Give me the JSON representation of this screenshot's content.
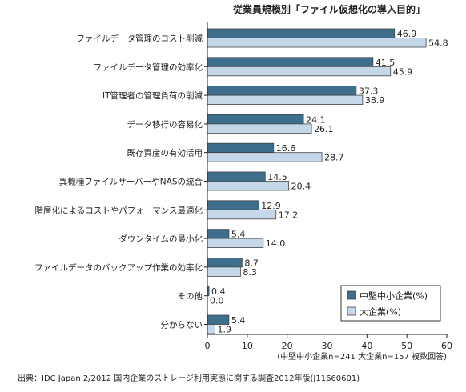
{
  "chart_data": {
    "type": "bar",
    "orientation": "horizontal",
    "title": "従業員規模別「ファイル仮想化の導入目的」",
    "categories": [
      "ファイルデータ管理のコスト削減",
      "ファイルデータ管理の効率化",
      "IT管理者の管理負荷の削減",
      "データ移行の容易化",
      "既存資産の有効活用",
      "異機種ファイルサーバーやNASの統合",
      "階層化によるコストやパフォーマンス最適化",
      "ダウンタイムの最小化",
      "ファイルデータのバックアップ作業の効率化",
      "その他",
      "分からない"
    ],
    "series": [
      {
        "name": "中堅中小企業(%)",
        "color": "#3d6e8c",
        "values": [
          46.9,
          41.5,
          37.3,
          24.1,
          16.6,
          14.5,
          12.9,
          5.4,
          8.7,
          0.4,
          5.4
        ],
        "labels": [
          "46.9",
          "41.5",
          "37.3",
          "24.1",
          "16.6",
          "14.5",
          "12.9",
          "5.4",
          "8.7",
          "0.4",
          "5.4"
        ]
      },
      {
        "name": "大企業(%)",
        "color": "#c5d8ea",
        "values": [
          54.8,
          45.9,
          38.9,
          26.1,
          28.7,
          20.4,
          17.2,
          14.0,
          8.3,
          0.0,
          1.9
        ],
        "labels": [
          "54.8",
          "45.9",
          "38.9",
          "26.1",
          "28.7",
          "20.4",
          "17.2",
          "14.0",
          "8.3",
          "0.0",
          "1.9"
        ]
      }
    ],
    "xlim": [
      0,
      60
    ],
    "xticks": [
      "0",
      "10",
      "20",
      "30",
      "40",
      "50",
      "60"
    ],
    "grid": false,
    "legend_position": "bottom-right",
    "note": "(中堅中小企業n=241 大企業n=157 複数回答)",
    "source": "出典：IDC Japan 2/2012 国内企業のストレージ利用実態に関する調査2012年版(J11660601)"
  }
}
